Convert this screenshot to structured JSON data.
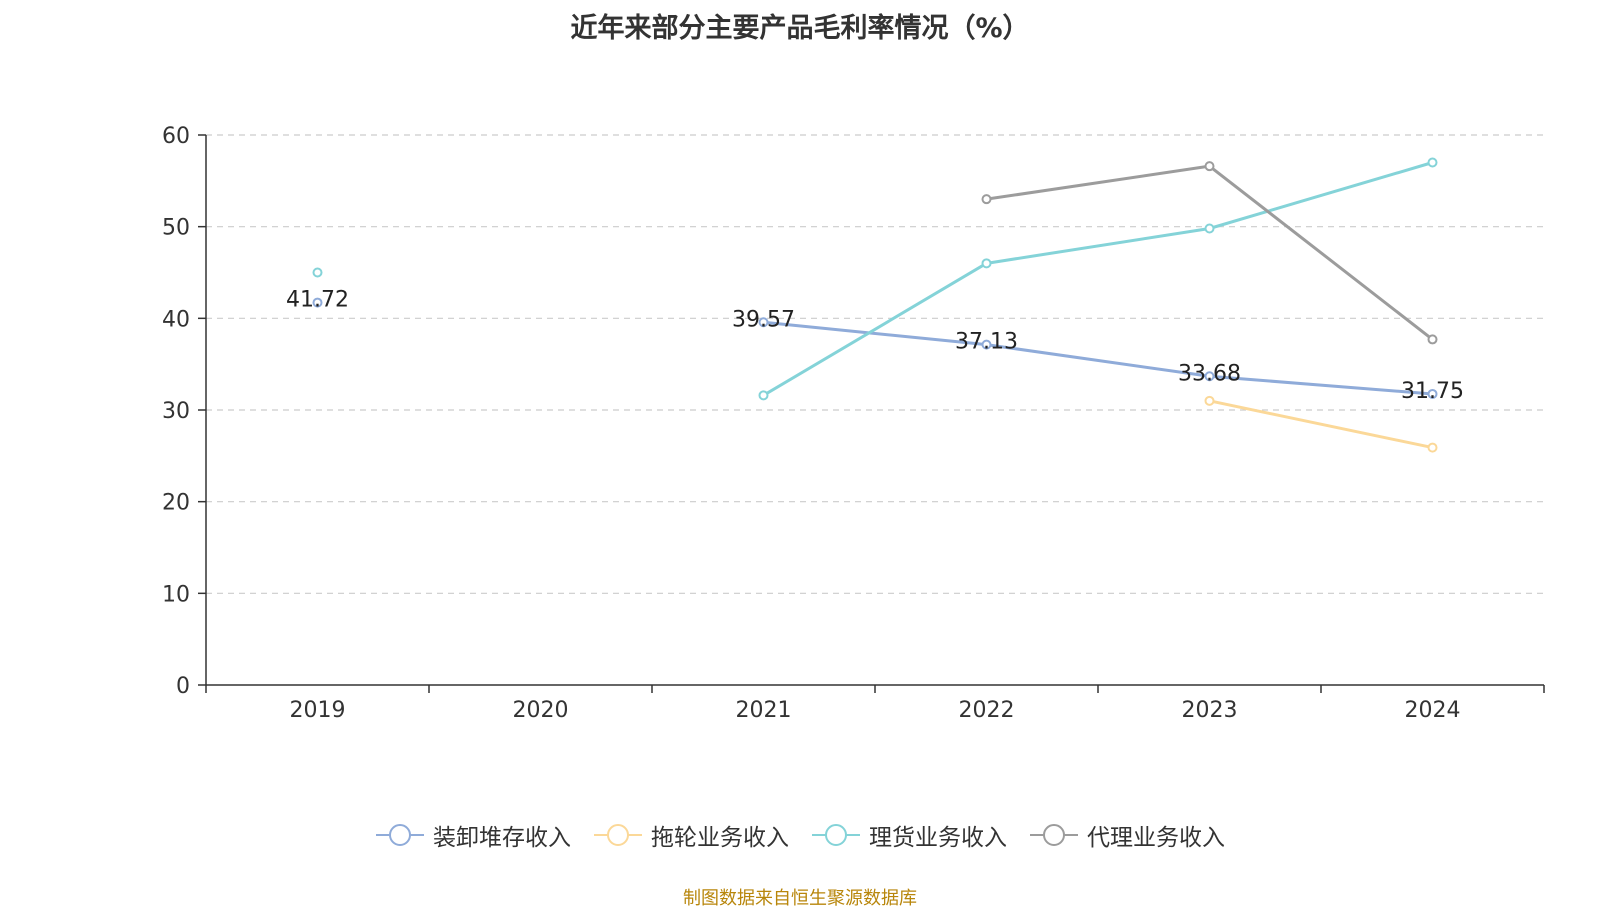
{
  "source_note": "制图数据来自恒生聚源数据库",
  "colors": {
    "axis": "#333333",
    "grid": "#cccccc",
    "label": "#333333"
  },
  "chart_data": {
    "type": "line",
    "title": "近年来部分主要产品毛利率情况（%）",
    "xlabel": "",
    "ylabel": "",
    "categories": [
      "2019",
      "2020",
      "2021",
      "2022",
      "2023",
      "2024"
    ],
    "ylim": [
      0,
      60
    ],
    "yticks": [
      0,
      10,
      20,
      30,
      40,
      50,
      60
    ],
    "grid": true,
    "legend_position": "bottom-center",
    "series": [
      {
        "name": "装卸堆存收入",
        "color": "#8fabd9",
        "values": [
          41.72,
          null,
          39.57,
          37.13,
          33.68,
          31.75
        ],
        "data_labels": [
          "41.72",
          null,
          "39.57",
          "37.13",
          "33.68",
          "31.75"
        ]
      },
      {
        "name": "拖轮业务收入",
        "color": "#fbd898",
        "values": [
          null,
          null,
          null,
          null,
          31.0,
          25.9
        ],
        "data_labels": null
      },
      {
        "name": "理货业务收入",
        "color": "#84d3d8",
        "values": [
          45.0,
          null,
          31.6,
          46.0,
          49.8,
          57.0
        ],
        "data_labels": null
      },
      {
        "name": "代理业务收入",
        "color": "#9c9c9c",
        "values": [
          null,
          null,
          null,
          53.0,
          56.6,
          37.7
        ],
        "data_labels": null
      }
    ]
  }
}
